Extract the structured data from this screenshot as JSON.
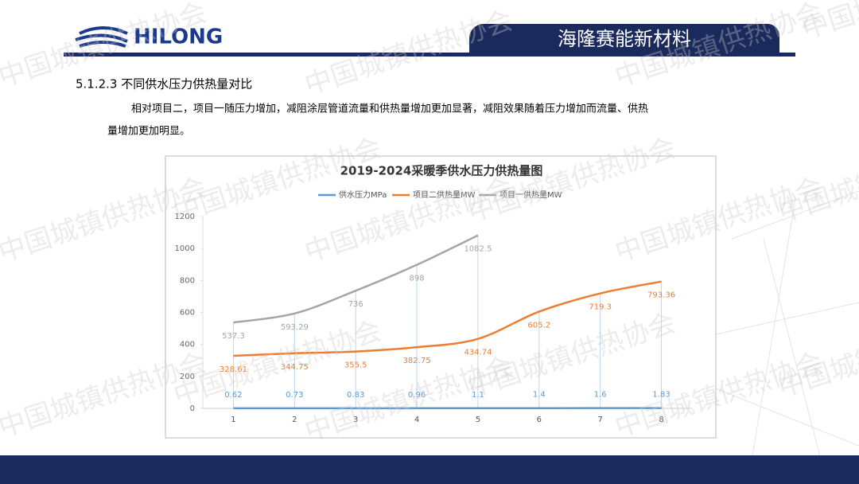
{
  "header": {
    "logo": "HILONG",
    "brand": "海隆赛能新材料"
  },
  "watermark": "中国城镇供热协会",
  "section": {
    "heading": "5.1.2.3 不同供水压力供热量对比",
    "paragraph": [
      "相对项目二，项目一随压力增加，减阻涂层管道流量和供热量增加更加显著，减阻效果随着压力增加而流量、供热",
      "量增加更加明显。"
    ]
  },
  "chart_data": {
    "type": "line",
    "title": "2019-2024采暖季供水压力供热量图",
    "categories": [
      "1",
      "2",
      "3",
      "4",
      "5",
      "6",
      "7",
      "8"
    ],
    "series": [
      {
        "name": "供水压力MPa",
        "color": "#5b9bd5",
        "values": [
          0.62,
          0.73,
          0.83,
          0.96,
          1.1,
          1.4,
          1.6,
          1.83
        ]
      },
      {
        "name": "项目二供热量MW",
        "color": "#ed7d31",
        "values": [
          328.61,
          344.75,
          355.5,
          382.75,
          434.74,
          605.2,
          719.3,
          793.36
        ]
      },
      {
        "name": "项目一供热量MW",
        "color": "#a5a5a5",
        "values": [
          537.3,
          593.29,
          736,
          898,
          1082.5,
          null,
          null,
          null
        ]
      }
    ],
    "ylim": [
      0,
      1200
    ],
    "yticks": [
      0,
      200,
      400,
      600,
      800,
      1000,
      1200
    ],
    "legend": "top",
    "grid": false
  }
}
